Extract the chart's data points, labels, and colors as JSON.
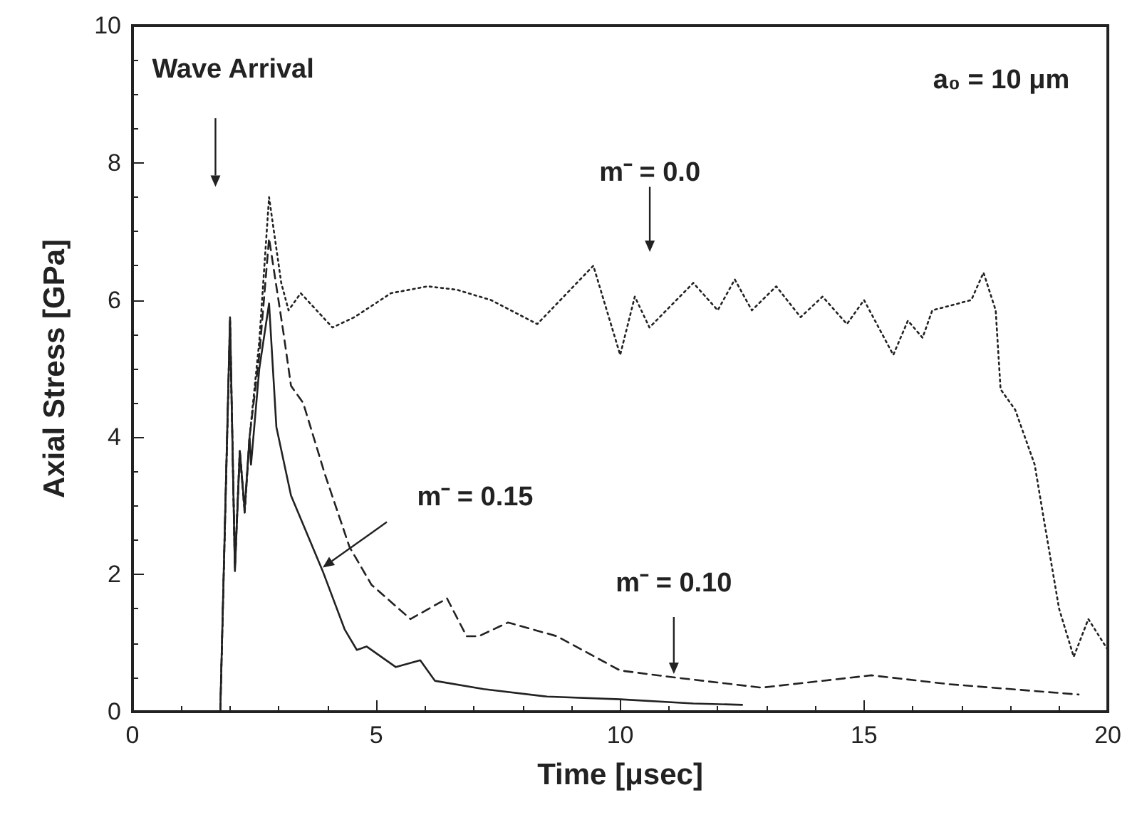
{
  "chart_data": {
    "type": "line",
    "xlabel": "Time [μsec]",
    "ylabel": "Axial Stress [GPa]",
    "xlim": [
      0,
      20
    ],
    "xticks": [
      0,
      5,
      10,
      15,
      20
    ],
    "ylim": [
      0,
      10
    ],
    "yticks": [
      0,
      2,
      4,
      6,
      8,
      10
    ],
    "grid": false,
    "marker": "none",
    "series": [
      {
        "color": "#222222",
        "line_style": "solid",
        "x": [
          1.8,
          2.0,
          2.1,
          2.2,
          2.3,
          2.4,
          2.43,
          2.6,
          2.8,
          2.95,
          3.25,
          3.9,
          4.35,
          4.6,
          4.8,
          5.4,
          5.9,
          6.2,
          7.2,
          8.5,
          10.0,
          11.5,
          12.5
        ],
        "values": [
          0,
          5.75,
          2.05,
          3.8,
          2.95,
          4.0,
          3.6,
          5.0,
          5.95,
          4.15,
          3.15,
          2.05,
          1.2,
          0.9,
          0.95,
          0.65,
          0.75,
          0.45,
          0.33,
          0.22,
          0.18,
          0.12,
          0.1
        ]
      },
      {
        "color": "#222222",
        "line_style": "dashed",
        "x": [
          1.8,
          2.0,
          2.1,
          2.2,
          2.3,
          2.4,
          2.6,
          2.8,
          3.1,
          3.25,
          3.5,
          3.95,
          4.45,
          4.9,
          5.7,
          6.45,
          6.85,
          7.1,
          7.7,
          8.7,
          10.0,
          11.1,
          12.9,
          15.15,
          16.75,
          19.4
        ],
        "values": [
          0,
          5.7,
          2.1,
          3.8,
          2.9,
          4.0,
          5.2,
          6.9,
          5.5,
          4.75,
          4.5,
          3.45,
          2.4,
          1.85,
          1.35,
          1.65,
          1.1,
          1.1,
          1.3,
          1.1,
          0.6,
          0.5,
          0.35,
          0.53,
          0.4,
          0.25
        ]
      },
      {
        "color": "#222222",
        "line_style": "dotted",
        "x": [
          1.8,
          2.0,
          2.1,
          2.2,
          2.3,
          2.4,
          2.6,
          2.8,
          3.05,
          3.2,
          3.45,
          4.1,
          4.55,
          5.3,
          6.05,
          6.65,
          7.35,
          8.3,
          9.45,
          10.0,
          10.3,
          10.6,
          11.5,
          12.0,
          12.35,
          12.7,
          13.2,
          13.7,
          14.15,
          14.65,
          15.0,
          15.6,
          15.9,
          16.2,
          16.4,
          17.2,
          17.45,
          17.7,
          17.8,
          18.1,
          18.5,
          18.7,
          19.0,
          19.3,
          19.6,
          20.0
        ],
        "values": [
          0,
          5.7,
          2.1,
          3.8,
          2.9,
          4.0,
          5.4,
          7.5,
          6.25,
          5.85,
          6.1,
          5.6,
          5.75,
          6.1,
          6.2,
          6.15,
          6.0,
          5.65,
          6.5,
          5.2,
          6.05,
          5.6,
          6.25,
          5.85,
          6.3,
          5.85,
          6.2,
          5.75,
          6.05,
          5.65,
          6.0,
          5.2,
          5.7,
          5.45,
          5.85,
          6.0,
          6.4,
          5.85,
          4.7,
          4.4,
          3.6,
          2.75,
          1.5,
          0.8,
          1.35,
          0.9
        ]
      }
    ],
    "annotations": [
      "Wave Arrival",
      "m⁻ = 0.0",
      {
        "text": "m⁻ = 0.15",
        "x": 3.9,
        "y": 2.1
      },
      {
        "text": "m⁻ = 0.10",
        "x": 11.1,
        "y": 0.55
      },
      "a₀ = 10 μm"
    ]
  }
}
